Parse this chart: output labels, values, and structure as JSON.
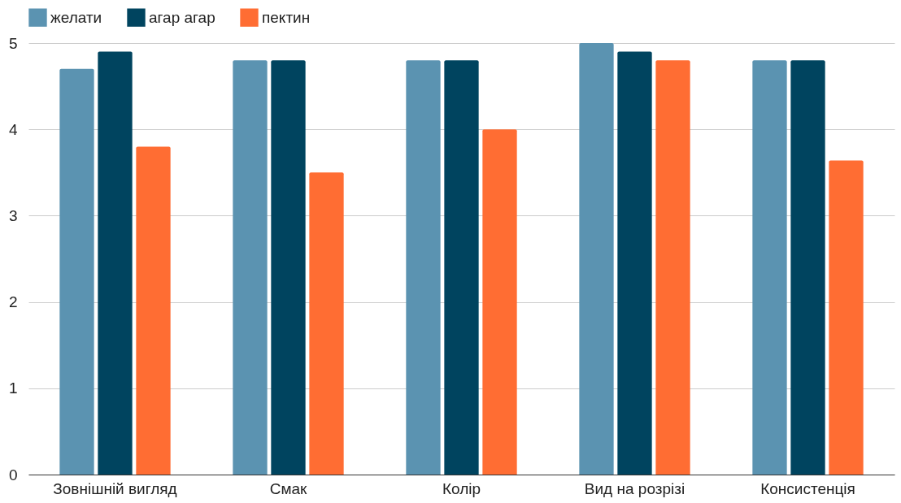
{
  "chart_data": {
    "type": "bar",
    "categories": [
      "Зовнішній вигляд",
      "Смак",
      "Колір",
      "Вид на розрізі",
      "Консистенція"
    ],
    "series": [
      {
        "name": "желати",
        "color": "#5b93b1",
        "values": [
          4.7,
          4.8,
          4.8,
          5.0,
          4.8
        ]
      },
      {
        "name": "агар агар",
        "color": "#00445f",
        "values": [
          4.9,
          4.8,
          4.8,
          4.9,
          4.8
        ]
      },
      {
        "name": "пектин",
        "color": "#ff6d33",
        "values": [
          3.8,
          3.5,
          4.0,
          4.8,
          3.64
        ]
      }
    ],
    "ylim": [
      0,
      5
    ],
    "yticks": [
      0,
      1,
      2,
      3,
      4,
      5
    ],
    "grid": "y",
    "legend": "top"
  }
}
